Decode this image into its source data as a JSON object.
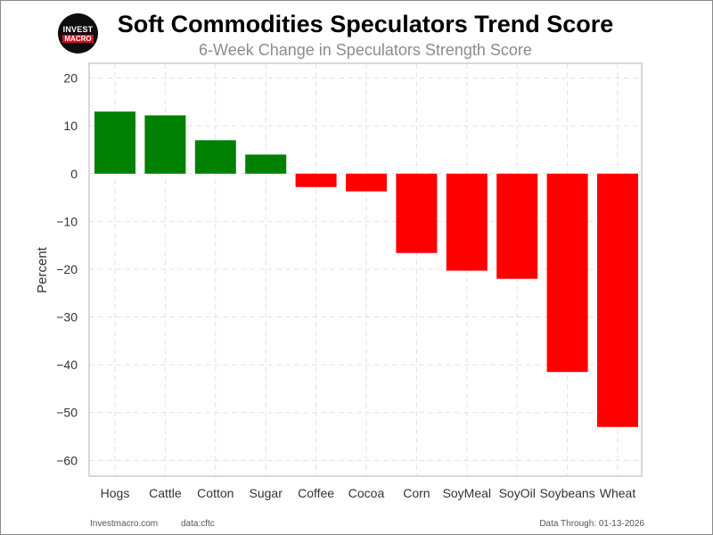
{
  "header": {
    "title": "Soft Commodities Speculators Trend Score",
    "subtitle": "6-Week Change in Speculators Strength Score",
    "logo_top": "INVEST",
    "logo_bottom": "MACRO"
  },
  "footer": {
    "site": "Investmacro.com",
    "data_source": "data:cftc",
    "data_through": "Data Through: 01-13-2026"
  },
  "colors": {
    "positive": "#008000",
    "negative": "#ff0000",
    "grid": "#e3e3e3",
    "axis": "#cccccc"
  },
  "chart_data": {
    "type": "bar",
    "title": "Soft Commodities Speculators Trend Score",
    "subtitle": "6-Week Change in Speculators Strength Score",
    "xlabel": "",
    "ylabel": "Percent",
    "categories": [
      "Hogs",
      "Cattle",
      "Cotton",
      "Sugar",
      "Coffee",
      "Cocoa",
      "Corn",
      "SoyMeal",
      "SoyOil",
      "Soybeans",
      "Wheat"
    ],
    "values": [
      13.0,
      12.2,
      7.0,
      4.0,
      -2.8,
      -3.7,
      -16.6,
      -20.3,
      -22.0,
      -41.5,
      -53.0
    ],
    "ylim": [
      -63.3,
      23.1
    ],
    "yticks": [
      20,
      10,
      0,
      -10,
      -20,
      -30,
      -40,
      -50,
      -60
    ],
    "ytick_labels": [
      "20",
      "10",
      "0",
      "−10",
      "−20",
      "−30",
      "−40",
      "−50",
      "−60"
    ],
    "grid": true,
    "legend": "none"
  }
}
